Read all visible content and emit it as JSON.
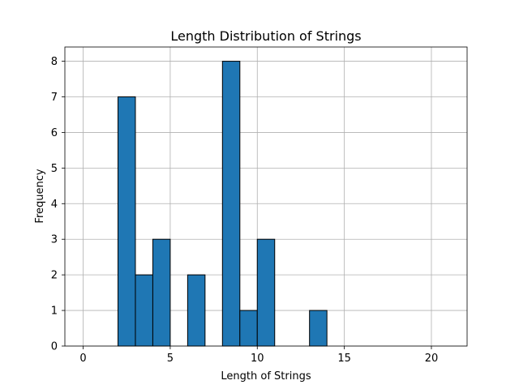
{
  "chart_data": {
    "type": "bar",
    "title": "Length Distribution of Strings",
    "xlabel": "Length of Strings",
    "ylabel": "Frequency",
    "bin_edges": [
      0,
      1,
      2,
      3,
      4,
      5,
      6,
      7,
      8,
      9,
      10,
      11,
      12,
      13,
      14,
      15,
      16,
      17,
      18,
      19,
      20,
      21
    ],
    "values": [
      0,
      0,
      7,
      2,
      3,
      0,
      2,
      0,
      8,
      1,
      3,
      0,
      0,
      1,
      0,
      0,
      0,
      0,
      0,
      0,
      0
    ],
    "xlim": [
      -1.05,
      22.05
    ],
    "ylim": [
      0,
      8.4
    ],
    "xticks": [
      0,
      5,
      10,
      15,
      20
    ],
    "yticks": [
      0,
      1,
      2,
      3,
      4,
      5,
      6,
      7,
      8
    ],
    "grid": true,
    "bar_color": "#1f77b4",
    "edge_color": "#000000"
  }
}
